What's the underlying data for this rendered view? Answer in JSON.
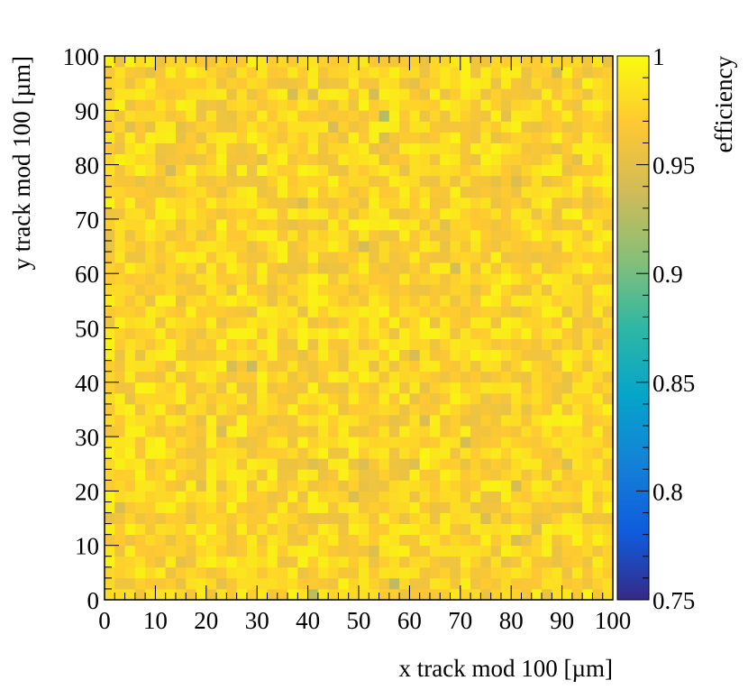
{
  "chart_data": {
    "type": "heatmap",
    "title": "",
    "xlabel": "x track mod 100 [µm]",
    "ylabel": "y track mod 100 [µm]",
    "zlabel": "efficiency",
    "xlim": [
      0,
      100
    ],
    "ylim": [
      0,
      100
    ],
    "zlim": [
      0.75,
      1
    ],
    "bins_x": 50,
    "bins_y": 50,
    "x_ticks": [
      "0",
      "10",
      "20",
      "30",
      "40",
      "50",
      "60",
      "70",
      "80",
      "90",
      "100"
    ],
    "y_ticks": [
      "0",
      "10",
      "20",
      "30",
      "40",
      "50",
      "60",
      "70",
      "80",
      "90",
      "100"
    ],
    "z_ticks": [
      "0.75",
      "0.8",
      "0.85",
      "0.9",
      "0.95",
      "1"
    ],
    "typical_efficiency": 0.975,
    "low_cells": [
      {
        "x": 55,
        "y": 89,
        "z": 0.925
      },
      {
        "x": 41,
        "y": 1,
        "z": 0.93
      },
      {
        "x": 57,
        "y": 3,
        "z": 0.93
      },
      {
        "x": 29,
        "y": 43,
        "z": 0.935
      },
      {
        "x": 37,
        "y": 93,
        "z": 0.94
      },
      {
        "x": 51,
        "y": 65,
        "z": 0.94
      },
      {
        "x": 81,
        "y": 21,
        "z": 0.94
      },
      {
        "x": 55,
        "y": 85,
        "z": 0.945
      },
      {
        "x": 39,
        "y": 73,
        "z": 0.945
      },
      {
        "x": 81,
        "y": 11,
        "z": 0.945
      },
      {
        "x": 75,
        "y": 15,
        "z": 0.945
      }
    ],
    "palette": [
      "#352a87",
      "#0f5cdd",
      "#1481d6",
      "#06a4ca",
      "#2eb7a4",
      "#87bf77",
      "#d1bb59",
      "#fec832",
      "#f9fb0e"
    ]
  }
}
